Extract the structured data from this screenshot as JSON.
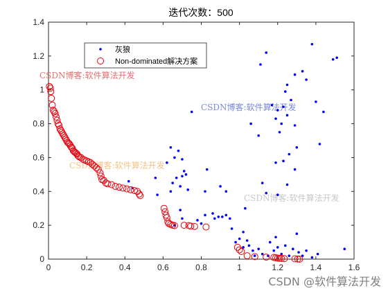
{
  "chart_data": {
    "type": "scatter",
    "title": "迭代次数：500",
    "xlabel": "",
    "ylabel": "",
    "xlim": [
      0,
      1.6
    ],
    "ylim": [
      0,
      1.4
    ],
    "xticks": [
      "0",
      "0.2",
      "0.4",
      "0.6",
      "0.8",
      "1",
      "1.2",
      "1.4",
      "1.6"
    ],
    "yticks": [
      "0",
      "0.2",
      "0.4",
      "0.6",
      "0.8",
      "1",
      "1.2",
      "1.4"
    ],
    "grid": false,
    "legend_position": "top-left",
    "series": [
      {
        "name": "灰狼",
        "marker": "dot",
        "color": "#0000ff",
        "points": [
          [
            1.14,
            1.22
          ],
          [
            1.51,
            1.19
          ],
          [
            1.49,
            1.18
          ],
          [
            1.38,
            1.27
          ],
          [
            1.11,
            1.15
          ],
          [
            1.29,
            1.09
          ],
          [
            1.33,
            1.11
          ],
          [
            1.25,
            1.03
          ],
          [
            1.24,
            0.99
          ],
          [
            1.17,
            0.91
          ],
          [
            1.2,
            0.88
          ],
          [
            1.23,
            0.9
          ],
          [
            1.27,
            0.94
          ],
          [
            1.4,
            0.93
          ],
          [
            1.44,
            0.87
          ],
          [
            1.06,
            0.8
          ],
          [
            1.25,
            0.85
          ],
          [
            1.29,
            0.79
          ],
          [
            1.21,
            0.75
          ],
          [
            1.1,
            0.73
          ],
          [
            0.75,
            0.87
          ],
          [
            1.35,
            1.06
          ],
          [
            1.19,
            0.83
          ],
          [
            1.22,
            0.8
          ],
          [
            1.3,
            0.66
          ],
          [
            1.42,
            0.68
          ],
          [
            1.26,
            0.62
          ],
          [
            1.23,
            0.58
          ],
          [
            1.19,
            0.57
          ],
          [
            1.29,
            0.53
          ],
          [
            1.12,
            0.45
          ],
          [
            1.14,
            0.39
          ],
          [
            1.25,
            0.44
          ],
          [
            1.03,
            0.3
          ],
          [
            1.2,
            0.38
          ],
          [
            0.62,
            0.57
          ],
          [
            0.64,
            0.66
          ],
          [
            0.66,
            0.6
          ],
          [
            0.68,
            0.64
          ],
          [
            0.7,
            0.59
          ],
          [
            0.71,
            0.52
          ],
          [
            0.67,
            0.48
          ],
          [
            0.7,
            0.49
          ],
          [
            0.72,
            0.5
          ],
          [
            0.65,
            0.45
          ],
          [
            0.69,
            0.43
          ],
          [
            0.73,
            0.41
          ],
          [
            0.56,
            0.48
          ],
          [
            0.57,
            0.38
          ],
          [
            0.64,
            0.4
          ],
          [
            0.42,
            0.46
          ],
          [
            0.44,
            0.42
          ],
          [
            0.83,
            0.53
          ],
          [
            0.9,
            0.43
          ],
          [
            0.93,
            0.4
          ],
          [
            0.82,
            0.4
          ],
          [
            0.69,
            0.29
          ],
          [
            0.7,
            0.24
          ],
          [
            0.66,
            0.2
          ],
          [
            0.78,
            0.23
          ],
          [
            0.8,
            0.21
          ],
          [
            0.86,
            0.27
          ],
          [
            0.87,
            0.24
          ],
          [
            0.89,
            0.25
          ],
          [
            0.91,
            0.25
          ],
          [
            0.93,
            0.26
          ],
          [
            0.95,
            0.24
          ],
          [
            0.82,
            0.26
          ],
          [
            0.96,
            0.18
          ],
          [
            0.98,
            0.1
          ],
          [
            1.0,
            0.12
          ],
          [
            1.02,
            0.07
          ],
          [
            1.05,
            0.08
          ],
          [
            1.07,
            0.05
          ],
          [
            1.08,
            0.02
          ],
          [
            1.1,
            0.06
          ],
          [
            1.12,
            0.03
          ],
          [
            1.15,
            0.02
          ],
          [
            1.18,
            0.05
          ],
          [
            1.2,
            0.07
          ],
          [
            1.22,
            0.03
          ],
          [
            1.24,
            0.08
          ],
          [
            1.26,
            0.02
          ],
          [
            1.28,
            0.06
          ],
          [
            1.31,
            0.04
          ],
          [
            1.33,
            0.02
          ],
          [
            1.35,
            0.05
          ],
          [
            1.38,
            0.01
          ],
          [
            1.41,
            0.03
          ],
          [
            1.55,
            0.06
          ],
          [
            1.02,
            0.16
          ],
          [
            1.04,
            0.11
          ],
          [
            1.16,
            0.1
          ],
          [
            1.19,
            0.13
          ],
          [
            1.3,
            0.15
          ]
        ]
      },
      {
        "name": "Non-dominated解决方案",
        "marker": "circle",
        "color": "#e8000b",
        "points": [
          [
            0.005,
            1.02
          ],
          [
            0.01,
            1.01
          ],
          [
            0.012,
            0.99
          ],
          [
            0.015,
            0.95
          ],
          [
            0.02,
            0.91
          ],
          [
            0.025,
            0.88
          ],
          [
            0.03,
            0.87
          ],
          [
            0.035,
            0.86
          ],
          [
            0.04,
            0.84
          ],
          [
            0.045,
            0.82
          ],
          [
            0.05,
            0.8
          ],
          [
            0.055,
            0.79
          ],
          [
            0.06,
            0.77
          ],
          [
            0.065,
            0.76
          ],
          [
            0.07,
            0.75
          ],
          [
            0.075,
            0.74
          ],
          [
            0.08,
            0.73
          ],
          [
            0.085,
            0.72
          ],
          [
            0.09,
            0.71
          ],
          [
            0.095,
            0.7
          ],
          [
            0.1,
            0.69
          ],
          [
            0.105,
            0.685
          ],
          [
            0.11,
            0.68
          ],
          [
            0.115,
            0.67
          ],
          [
            0.12,
            0.66
          ],
          [
            0.125,
            0.655
          ],
          [
            0.13,
            0.64
          ],
          [
            0.135,
            0.635
          ],
          [
            0.14,
            0.63
          ],
          [
            0.145,
            0.625
          ],
          [
            0.15,
            0.62
          ],
          [
            0.155,
            0.61
          ],
          [
            0.16,
            0.605
          ],
          [
            0.17,
            0.6
          ],
          [
            0.18,
            0.59
          ],
          [
            0.19,
            0.585
          ],
          [
            0.2,
            0.58
          ],
          [
            0.21,
            0.575
          ],
          [
            0.22,
            0.57
          ],
          [
            0.23,
            0.56
          ],
          [
            0.24,
            0.55
          ],
          [
            0.25,
            0.54
          ],
          [
            0.26,
            0.53
          ],
          [
            0.27,
            0.51
          ],
          [
            0.275,
            0.49
          ],
          [
            0.28,
            0.47
          ],
          [
            0.29,
            0.465
          ],
          [
            0.3,
            0.45
          ],
          [
            0.31,
            0.445
          ],
          [
            0.33,
            0.44
          ],
          [
            0.35,
            0.43
          ],
          [
            0.37,
            0.425
          ],
          [
            0.39,
            0.42
          ],
          [
            0.41,
            0.415
          ],
          [
            0.43,
            0.41
          ],
          [
            0.45,
            0.405
          ],
          [
            0.465,
            0.4
          ],
          [
            0.475,
            0.385
          ],
          [
            0.48,
            0.375
          ],
          [
            0.605,
            0.3
          ],
          [
            0.61,
            0.28
          ],
          [
            0.615,
            0.26
          ],
          [
            0.62,
            0.245
          ],
          [
            0.625,
            0.22
          ],
          [
            0.63,
            0.21
          ],
          [
            0.64,
            0.205
          ],
          [
            0.65,
            0.2
          ],
          [
            0.66,
            0.198
          ],
          [
            0.71,
            0.2
          ],
          [
            0.735,
            0.198
          ],
          [
            0.745,
            0.195
          ],
          [
            0.765,
            0.193
          ],
          [
            0.825,
            0.19
          ],
          [
            0.99,
            0.07
          ],
          [
            1.0,
            0.055
          ],
          [
            1.01,
            0.045
          ],
          [
            1.04,
            0.02
          ],
          [
            1.08,
            0.015
          ],
          [
            1.14,
            0.012
          ],
          [
            1.18,
            0.01
          ],
          [
            1.19,
            0.008
          ],
          [
            1.2,
            0.006
          ],
          [
            1.21,
            0.005
          ],
          [
            1.22,
            0.004
          ],
          [
            1.235,
            0.003
          ],
          [
            1.29,
            0.002
          ],
          [
            1.305,
            0.001
          ],
          [
            1.315,
            0.0
          ]
        ]
      }
    ]
  },
  "watermarks": [
    {
      "text": "CSDN博客:软件算法开发",
      "color": "#e07070"
    },
    {
      "text": "CSDN博客:软件算法开发",
      "color": "#7a88dd"
    },
    {
      "text": "CSDN博客:软件算法开发",
      "color": "#f2c48a"
    },
    {
      "text": "CSDN博客:软件算法开发",
      "color": "#c8c8c8"
    }
  ],
  "footer_watermark": "CSDN @软件算法开发"
}
